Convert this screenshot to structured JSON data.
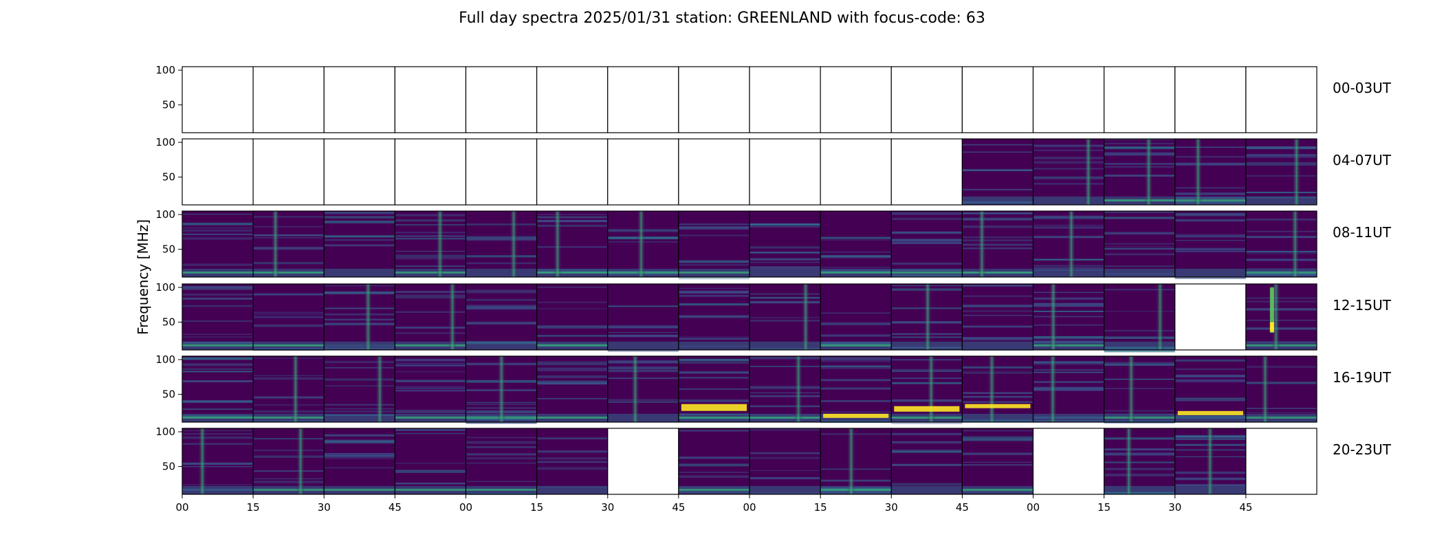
{
  "chart_data": {
    "type": "heatmap",
    "title": "Full day spectra 2025/01/31 station: GREENLAND with focus-code: 63",
    "ylabel": "Frequency [MHz]",
    "xlabel": "",
    "ylim": [
      10,
      105
    ],
    "yticks": [
      50,
      100
    ],
    "xticks": [
      "00",
      "15",
      "30",
      "45",
      "00",
      "15",
      "30",
      "45",
      "00",
      "15",
      "30",
      "45",
      "00",
      "15",
      "30",
      "45"
    ],
    "colormap": "viridis",
    "colors": {
      "low": "#440154",
      "mid": "#21918c",
      "high": "#fde725"
    },
    "rows": [
      {
        "label": "00-03UT",
        "panels": [
          0,
          0,
          0,
          0,
          0,
          0,
          0,
          0,
          0,
          0,
          0,
          0,
          0,
          0,
          0,
          0
        ]
      },
      {
        "label": "04-07UT",
        "panels": [
          0,
          0,
          0,
          0,
          0,
          0,
          0,
          0,
          0,
          0,
          0,
          1,
          1,
          1,
          1,
          1
        ]
      },
      {
        "label": "08-11UT",
        "panels": [
          1,
          1,
          1,
          1,
          1,
          1,
          1,
          1,
          1,
          1,
          1,
          1,
          1,
          1,
          1,
          1
        ]
      },
      {
        "label": "12-15UT",
        "panels": [
          1,
          1,
          1,
          1,
          1,
          1,
          1,
          1,
          1,
          1,
          1,
          1,
          1,
          1,
          0,
          1
        ]
      },
      {
        "label": "16-19UT",
        "panels": [
          1,
          1,
          1,
          1,
          1,
          1,
          1,
          1,
          1,
          1,
          1,
          1,
          1,
          1,
          1,
          1
        ]
      },
      {
        "label": "20-23UT",
        "panels": [
          1,
          1,
          1,
          1,
          1,
          1,
          0,
          1,
          1,
          1,
          1,
          1,
          0,
          1,
          1,
          0
        ]
      }
    ]
  }
}
